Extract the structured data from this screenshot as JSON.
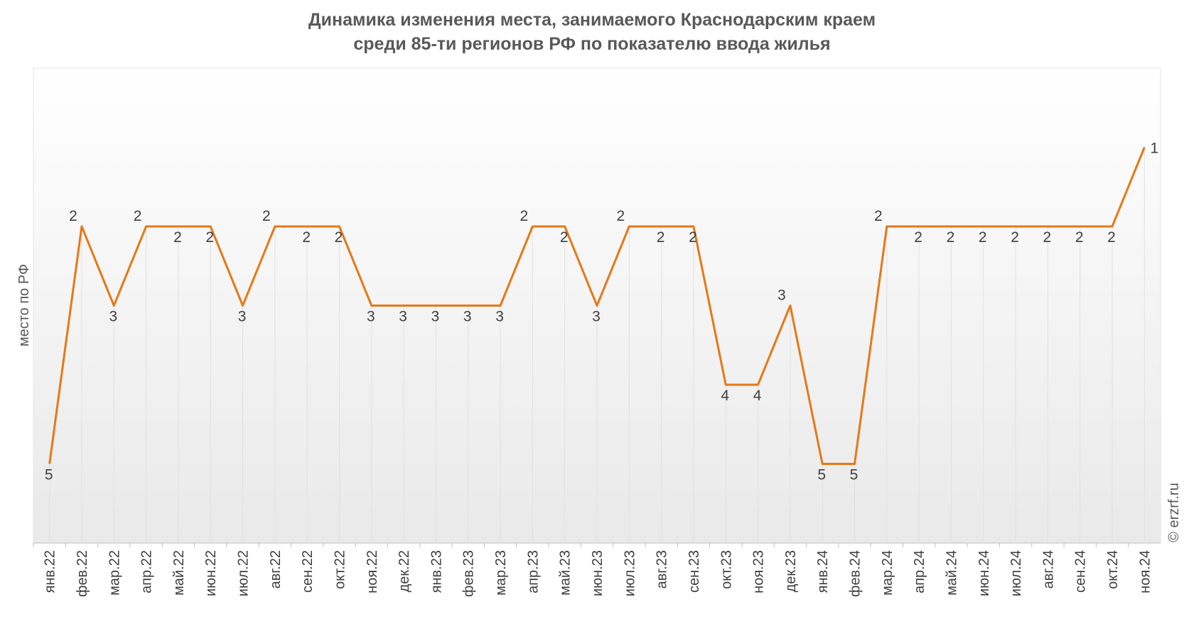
{
  "chart_data": {
    "type": "line",
    "title": [
      "Динамика изменения места, занимаемого Краснодарским краем",
      "среди 85-ти регионов РФ по показателю ввода жилья"
    ],
    "y_label": "место по РФ",
    "watermark": "© erzrf.ru",
    "categories": [
      "янв.22",
      "фев.22",
      "мар.22",
      "апр.22",
      "май.22",
      "июн.22",
      "июл.22",
      "авг.22",
      "сен.22",
      "окт.22",
      "ноя.22",
      "дек.22",
      "янв.23",
      "фев.23",
      "мар.23",
      "апр.23",
      "май.23",
      "июн.23",
      "июл.23",
      "авг.23",
      "сен.23",
      "окт.23",
      "ноя.23",
      "дек.23",
      "янв.24",
      "фев.24",
      "мар.24",
      "апр.24",
      "май.24",
      "июн.24",
      "июл.24",
      "авг.24",
      "сен.24",
      "окт.24",
      "ноя.24"
    ],
    "series": [
      {
        "name": "место по РФ",
        "color": "#e67817",
        "values": [
          5,
          2,
          3,
          2,
          2,
          2,
          3,
          2,
          2,
          2,
          3,
          3,
          3,
          3,
          3,
          2,
          2,
          3,
          2,
          2,
          2,
          4,
          4,
          3,
          5,
          5,
          2,
          2,
          2,
          2,
          2,
          2,
          2,
          2,
          1
        ]
      }
    ],
    "ylim": [
      0,
      6
    ],
    "y_inverted": true,
    "grid": false
  }
}
